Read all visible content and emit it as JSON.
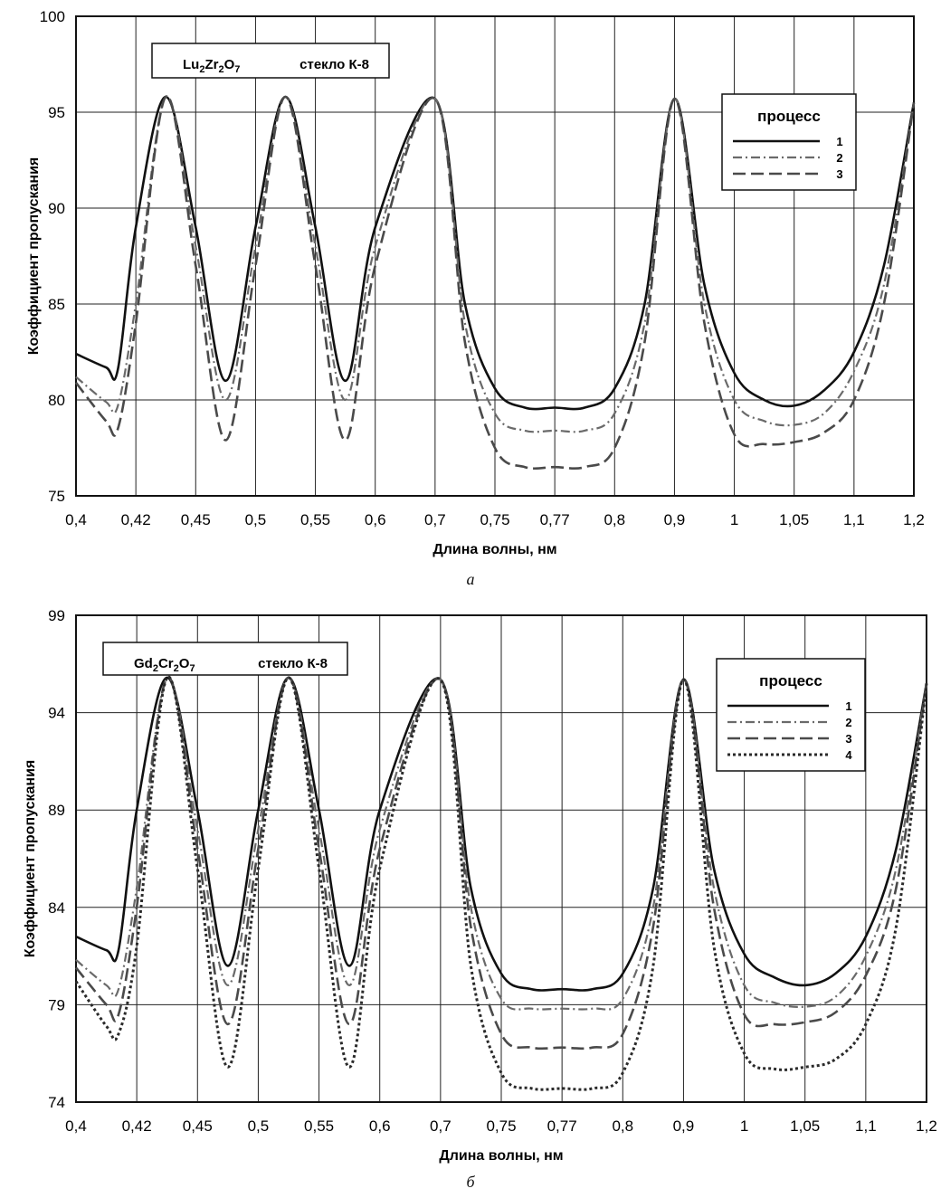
{
  "chart_data": [
    {
      "type": "line",
      "panel_id": "a",
      "caption": "а",
      "xlabel": "Длина волны, нм",
      "ylabel": "Коэффициент пропускания",
      "categories": [
        "0,4",
        "0,42",
        "0,45",
        "0,5",
        "0,55",
        "0,6",
        "0,7",
        "0,75",
        "0,77",
        "0,8",
        "0,9",
        "1",
        "1,05",
        "1,1",
        "1,2"
      ],
      "ylim": [
        75,
        100
      ],
      "yticks": [
        "75",
        "80",
        "85",
        "90",
        "95",
        "100"
      ],
      "grid": true,
      "legend_position": "top-right",
      "legend_title": "процесс",
      "annotation": {
        "formula": {
          "parts": [
            "Lu",
            "2",
            "Zr",
            "2",
            "O",
            "7"
          ]
        },
        "text": "стекло К-8"
      },
      "series": [
        {
          "name": "1",
          "dash": "solid",
          "color": "#111111",
          "width": 2.6,
          "points": [
            [
              0,
              82.4
            ],
            [
              0.5,
              81.7
            ],
            [
              0.7,
              81.6
            ],
            [
              1,
              89
            ],
            [
              1.5,
              95.8
            ],
            [
              2,
              89
            ],
            [
              2.5,
              81
            ],
            [
              3,
              89
            ],
            [
              3.5,
              95.8
            ],
            [
              4,
              89
            ],
            [
              4.5,
              81
            ],
            [
              5,
              89
            ],
            [
              6,
              95.7
            ],
            [
              6.5,
              85
            ],
            [
              7,
              80.6
            ],
            [
              7.5,
              79.6
            ],
            [
              8,
              79.6
            ],
            [
              8.5,
              79.6
            ],
            [
              9,
              80.6
            ],
            [
              9.5,
              85
            ],
            [
              10,
              95.7
            ],
            [
              10.5,
              86
            ],
            [
              11,
              81.4
            ],
            [
              11.5,
              80
            ],
            [
              12,
              79.7
            ],
            [
              12.5,
              80.5
            ],
            [
              13,
              82.5
            ],
            [
              13.5,
              87
            ],
            [
              14,
              95.5
            ]
          ]
        },
        {
          "name": "2",
          "dash": "dashdot",
          "color": "#6a6a6a",
          "width": 2.2,
          "points": [
            [
              0,
              81.2
            ],
            [
              0.5,
              79.9
            ],
            [
              0.7,
              79.7
            ],
            [
              1,
              85
            ],
            [
              1.5,
              95.8
            ],
            [
              2,
              88
            ],
            [
              2.5,
              80
            ],
            [
              3,
              88
            ],
            [
              3.5,
              95.8
            ],
            [
              4,
              88
            ],
            [
              4.5,
              80
            ],
            [
              5,
              88
            ],
            [
              6,
              95.7
            ],
            [
              6.5,
              84
            ],
            [
              7,
              79.3
            ],
            [
              7.5,
              78.4
            ],
            [
              8,
              78.4
            ],
            [
              8.5,
              78.4
            ],
            [
              9,
              79.3
            ],
            [
              9.5,
              84
            ],
            [
              10,
              95.7
            ],
            [
              10.5,
              85
            ],
            [
              11,
              80
            ],
            [
              11.5,
              78.9
            ],
            [
              12,
              78.7
            ],
            [
              12.5,
              79.3
            ],
            [
              13,
              81.5
            ],
            [
              13.5,
              86
            ],
            [
              14,
              95.5
            ]
          ]
        },
        {
          "name": "3",
          "dash": "dash",
          "color": "#4a4a4a",
          "width": 2.6,
          "points": [
            [
              0,
              80.9
            ],
            [
              0.5,
              78.9
            ],
            [
              0.7,
              78.5
            ],
            [
              1,
              84
            ],
            [
              1.5,
              95.8
            ],
            [
              2,
              87
            ],
            [
              2.5,
              77.9
            ],
            [
              3,
              87
            ],
            [
              3.5,
              95.8
            ],
            [
              4,
              87
            ],
            [
              4.5,
              77.9
            ],
            [
              5,
              87
            ],
            [
              6,
              95.7
            ],
            [
              6.5,
              83
            ],
            [
              7,
              77.5
            ],
            [
              7.5,
              76.5
            ],
            [
              8,
              76.5
            ],
            [
              8.5,
              76.5
            ],
            [
              9,
              77.5
            ],
            [
              9.5,
              83
            ],
            [
              10,
              95.7
            ],
            [
              10.5,
              84
            ],
            [
              11,
              78.2
            ],
            [
              11.5,
              77.7
            ],
            [
              12,
              77.8
            ],
            [
              12.5,
              78.3
            ],
            [
              13,
              80
            ],
            [
              13.5,
              85
            ],
            [
              14,
              95.5
            ]
          ]
        }
      ]
    },
    {
      "type": "line",
      "panel_id": "b",
      "caption": "б",
      "xlabel": "Длина волны, нм",
      "ylabel": "Коэффициент пропускания",
      "categories": [
        "0,4",
        "0,42",
        "0,45",
        "0,5",
        "0,55",
        "0,6",
        "0,7",
        "0,75",
        "0,77",
        "0,8",
        "0,9",
        "1",
        "1,05",
        "1,1",
        "1,2"
      ],
      "ylim": [
        74,
        99
      ],
      "yticks": [
        "74",
        "79",
        "84",
        "89",
        "94",
        "99"
      ],
      "grid": true,
      "legend_position": "top-right",
      "legend_title": "процесс",
      "annotation": {
        "formula": {
          "parts": [
            "Gd",
            "2",
            "Cr",
            "2",
            "O",
            "7"
          ]
        },
        "text": "стекло К-8"
      },
      "series": [
        {
          "name": "1",
          "dash": "solid",
          "color": "#111111",
          "width": 2.6,
          "points": [
            [
              0,
              82.5
            ],
            [
              0.5,
              81.8
            ],
            [
              0.7,
              81.8
            ],
            [
              1,
              89
            ],
            [
              1.5,
              95.8
            ],
            [
              2,
              89
            ],
            [
              2.5,
              81
            ],
            [
              3,
              89
            ],
            [
              3.5,
              95.8
            ],
            [
              4,
              89
            ],
            [
              4.5,
              81
            ],
            [
              5,
              89
            ],
            [
              6,
              95.7
            ],
            [
              6.5,
              85
            ],
            [
              7,
              80.6
            ],
            [
              7.5,
              79.8
            ],
            [
              8,
              79.8
            ],
            [
              8.5,
              79.8
            ],
            [
              9,
              80.6
            ],
            [
              9.5,
              85
            ],
            [
              10,
              95.7
            ],
            [
              10.5,
              86
            ],
            [
              11,
              81.6
            ],
            [
              11.5,
              80.4
            ],
            [
              12,
              80
            ],
            [
              12.5,
              80.6
            ],
            [
              13,
              82.5
            ],
            [
              13.5,
              87
            ],
            [
              14,
              95.5
            ]
          ]
        },
        {
          "name": "2",
          "dash": "dashdot",
          "color": "#6a6a6a",
          "width": 2.2,
          "points": [
            [
              0,
              81.3
            ],
            [
              0.5,
              80
            ],
            [
              0.7,
              79.8
            ],
            [
              1,
              85
            ],
            [
              1.5,
              95.8
            ],
            [
              2,
              88
            ],
            [
              2.5,
              80
            ],
            [
              3,
              88
            ],
            [
              3.5,
              95.8
            ],
            [
              4,
              88
            ],
            [
              4.5,
              80
            ],
            [
              5,
              88
            ],
            [
              6,
              95.7
            ],
            [
              6.5,
              84
            ],
            [
              7,
              79.3
            ],
            [
              7.5,
              78.8
            ],
            [
              8,
              78.8
            ],
            [
              8.5,
              78.8
            ],
            [
              9,
              79.3
            ],
            [
              9.5,
              84
            ],
            [
              10,
              95.7
            ],
            [
              10.5,
              85
            ],
            [
              11,
              80
            ],
            [
              11.5,
              79.1
            ],
            [
              12,
              78.9
            ],
            [
              12.5,
              79.4
            ],
            [
              13,
              81.5
            ],
            [
              13.5,
              86
            ],
            [
              14,
              95.5
            ]
          ]
        },
        {
          "name": "3",
          "dash": "dash",
          "color": "#4a4a4a",
          "width": 2.6,
          "points": [
            [
              0,
              80.9
            ],
            [
              0.5,
              79
            ],
            [
              0.7,
              78.5
            ],
            [
              1,
              84
            ],
            [
              1.5,
              95.8
            ],
            [
              2,
              87
            ],
            [
              2.5,
              78
            ],
            [
              3,
              87
            ],
            [
              3.5,
              95.8
            ],
            [
              4,
              87
            ],
            [
              4.5,
              78
            ],
            [
              5,
              87
            ],
            [
              6,
              95.7
            ],
            [
              6.5,
              83
            ],
            [
              7,
              77.5
            ],
            [
              7.5,
              76.8
            ],
            [
              8,
              76.8
            ],
            [
              8.5,
              76.8
            ],
            [
              9,
              77.5
            ],
            [
              9.5,
              83
            ],
            [
              10,
              95.7
            ],
            [
              10.5,
              84
            ],
            [
              11,
              78.5
            ],
            [
              11.5,
              78
            ],
            [
              12,
              78.1
            ],
            [
              12.5,
              78.6
            ],
            [
              13,
              80.5
            ],
            [
              13.5,
              85
            ],
            [
              14,
              95.5
            ]
          ]
        },
        {
          "name": "4",
          "dash": "dot",
          "color": "#2a2a2a",
          "width": 3,
          "points": [
            [
              0,
              80.2
            ],
            [
              0.5,
              77.9
            ],
            [
              0.7,
              77.5
            ],
            [
              1,
              82
            ],
            [
              1.5,
              95.8
            ],
            [
              2,
              86
            ],
            [
              2.5,
              75.8
            ],
            [
              3,
              86
            ],
            [
              3.5,
              95.8
            ],
            [
              4,
              86
            ],
            [
              4.5,
              75.8
            ],
            [
              5,
              86
            ],
            [
              6,
              95.7
            ],
            [
              6.5,
              81
            ],
            [
              7,
              75.5
            ],
            [
              7.5,
              74.7
            ],
            [
              8,
              74.7
            ],
            [
              8.5,
              74.7
            ],
            [
              9,
              75.5
            ],
            [
              9.5,
              81
            ],
            [
              10,
              95.7
            ],
            [
              10.5,
              82
            ],
            [
              11,
              76.5
            ],
            [
              11.5,
              75.7
            ],
            [
              12,
              75.8
            ],
            [
              12.5,
              76.2
            ],
            [
              13,
              78
            ],
            [
              13.5,
              83
            ],
            [
              14,
              95.5
            ]
          ]
        }
      ]
    }
  ]
}
